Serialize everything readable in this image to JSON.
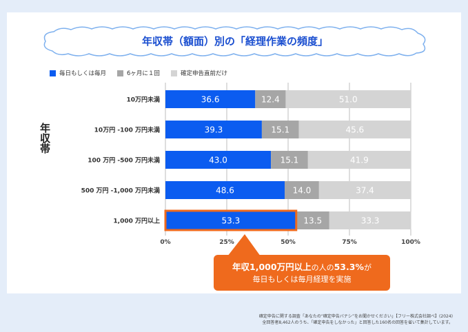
{
  "title": "年収帯（額面）別の「経理作業の頻度」",
  "legend": [
    {
      "label": "毎日もしくは毎月",
      "color": "#0b5cf0"
    },
    {
      "label": "6ヶ月に１回",
      "color": "#a6a6a6"
    },
    {
      "label": "確定申告直前だけ",
      "color": "#d4d4d4"
    }
  ],
  "y_axis_title": "年収帯",
  "callout": {
    "part1": "年収1,000万円以上",
    "part2": "の人の",
    "part3": "53.3%",
    "part4": "が",
    "line2": "毎日もしくは毎月経理を実施",
    "color": "#ef6a1d"
  },
  "notes": {
    "line1": "確定申告に関する調査「あなたの“確定申告バナシ”をお聞かせください」【フリー株式会社調べ】(2024)",
    "line2": "全回答者8,462人のうち、「確定申告をしなかった」と回答した160名の回答を省いて集計しています。"
  },
  "chart_data": {
    "type": "bar",
    "orientation": "horizontal",
    "stacked": true,
    "title": "年収帯（額面）別の「経理作業の頻度」",
    "ylabel": "年収帯",
    "categories": [
      "10万円未満",
      "10万円 -100 万円未満",
      "100 万円 -500 万円未満",
      "500 万円 -1,000 万円未満",
      "1,000 万円以上"
    ],
    "series": [
      {
        "name": "毎日もしくは毎月",
        "color": "#0b5cf0",
        "values": [
          36.6,
          39.3,
          43.0,
          48.6,
          53.3
        ]
      },
      {
        "name": "6ヶ月に１回",
        "color": "#a6a6a6",
        "values": [
          12.4,
          15.1,
          15.1,
          14.0,
          13.5
        ]
      },
      {
        "name": "確定申告直前だけ",
        "color": "#d4d4d4",
        "values": [
          51.0,
          45.6,
          41.9,
          37.4,
          33.3
        ]
      }
    ],
    "xlim": [
      0,
      100
    ],
    "xticks": [
      "0%",
      "25%",
      "50%",
      "75%",
      "100%"
    ],
    "highlight_category": "1,000 万円以上",
    "highlight_color": "#ef6a1d",
    "grid": true
  }
}
